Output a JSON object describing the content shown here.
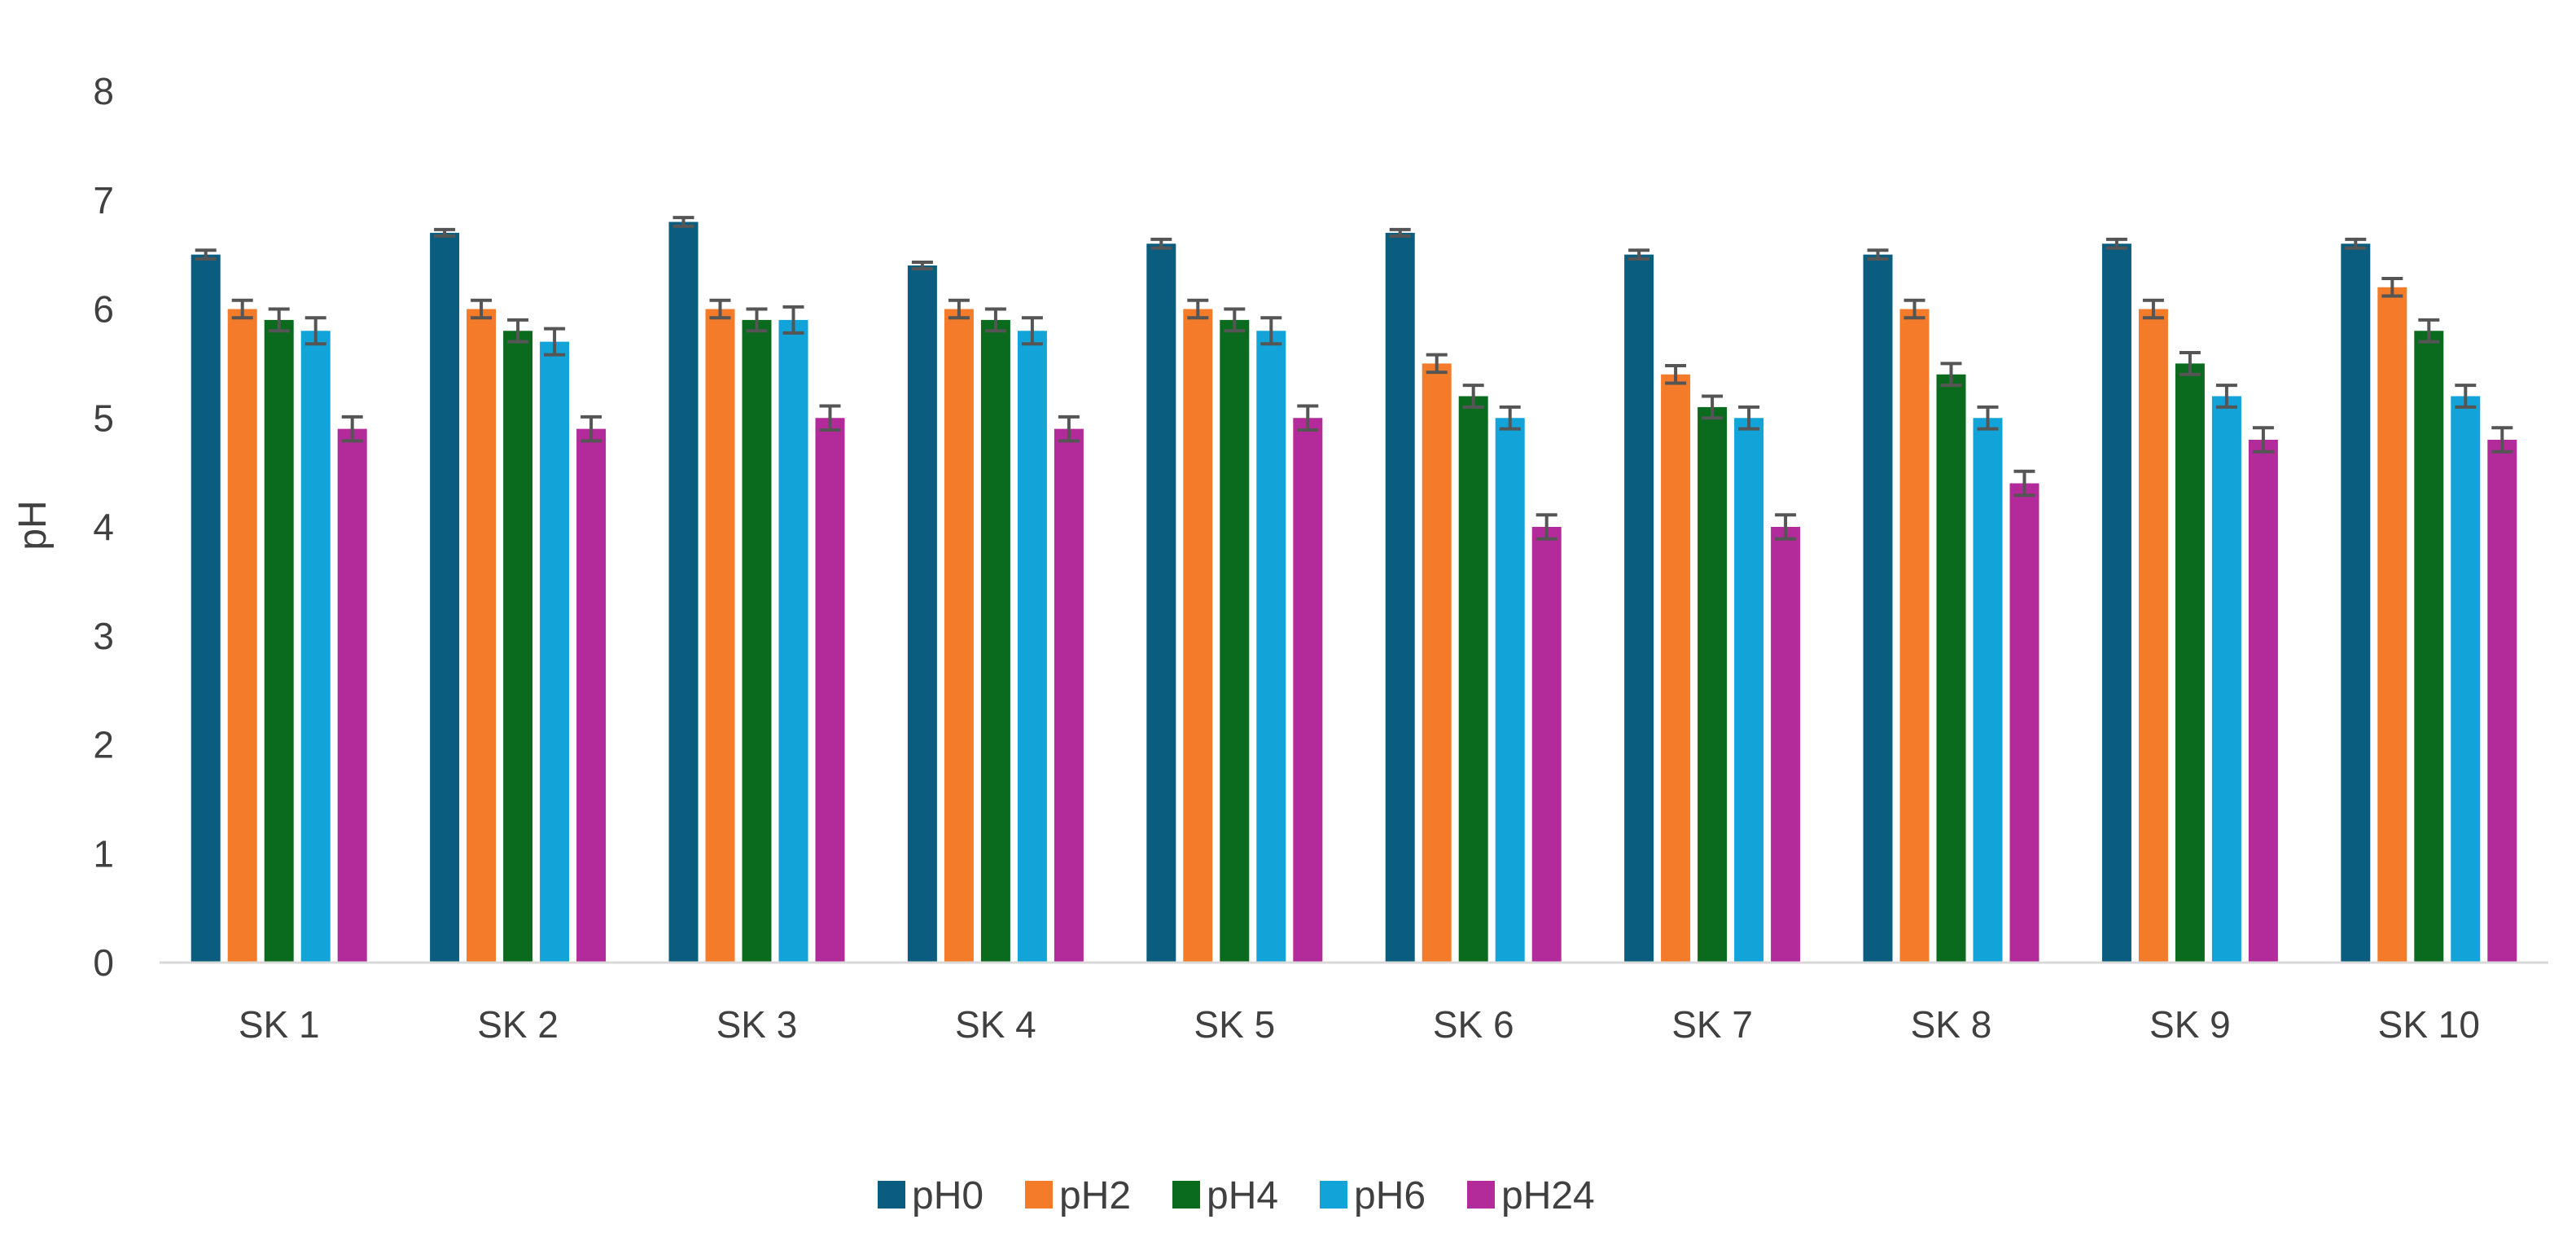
{
  "chart_data": {
    "type": "bar",
    "title": "",
    "xlabel": "",
    "ylabel": "pH",
    "ylim": [
      0,
      8
    ],
    "yticks": [
      0,
      1,
      2,
      3,
      4,
      5,
      6,
      7,
      8
    ],
    "grid": false,
    "legend_position": "bottom",
    "error_bars": true,
    "categories": [
      "SK 1",
      "SK 2",
      "SK 3",
      "SK 4",
      "SK 5",
      "SK 6",
      "SK 7",
      "SK 8",
      "SK 9",
      "SK 10"
    ],
    "series": [
      {
        "name": "pH0",
        "color": "#0b5d80",
        "values": [
          6.5,
          6.7,
          6.8,
          6.4,
          6.6,
          6.7,
          6.5,
          6.5,
          6.6,
          6.6
        ],
        "errors": [
          0.04,
          0.03,
          0.04,
          0.03,
          0.04,
          0.03,
          0.04,
          0.04,
          0.04,
          0.04
        ]
      },
      {
        "name": "pH2",
        "color": "#f47b2a",
        "values": [
          6.0,
          6.0,
          6.0,
          6.0,
          6.0,
          5.5,
          5.4,
          6.0,
          6.0,
          6.2
        ],
        "errors": [
          0.08,
          0.08,
          0.08,
          0.08,
          0.08,
          0.08,
          0.08,
          0.08,
          0.08,
          0.08
        ]
      },
      {
        "name": "pH4",
        "color": "#0a6b1f",
        "values": [
          5.9,
          5.8,
          5.9,
          5.9,
          5.9,
          5.2,
          5.1,
          5.4,
          5.5,
          5.8
        ],
        "errors": [
          0.1,
          0.1,
          0.1,
          0.1,
          0.1,
          0.1,
          0.1,
          0.1,
          0.1,
          0.1
        ]
      },
      {
        "name": "pH6",
        "color": "#12a3d9",
        "values": [
          5.8,
          5.7,
          5.9,
          5.8,
          5.8,
          5.0,
          5.0,
          5.0,
          5.2,
          5.2
        ],
        "errors": [
          0.12,
          0.12,
          0.12,
          0.12,
          0.12,
          0.1,
          0.1,
          0.1,
          0.1,
          0.1
        ]
      },
      {
        "name": "pH24",
        "color": "#b32a9a",
        "values": [
          4.9,
          4.9,
          5.0,
          4.9,
          5.0,
          4.0,
          4.0,
          4.4,
          4.8,
          4.8
        ],
        "errors": [
          0.11,
          0.11,
          0.11,
          0.11,
          0.11,
          0.11,
          0.11,
          0.11,
          0.11,
          0.11
        ]
      }
    ]
  }
}
